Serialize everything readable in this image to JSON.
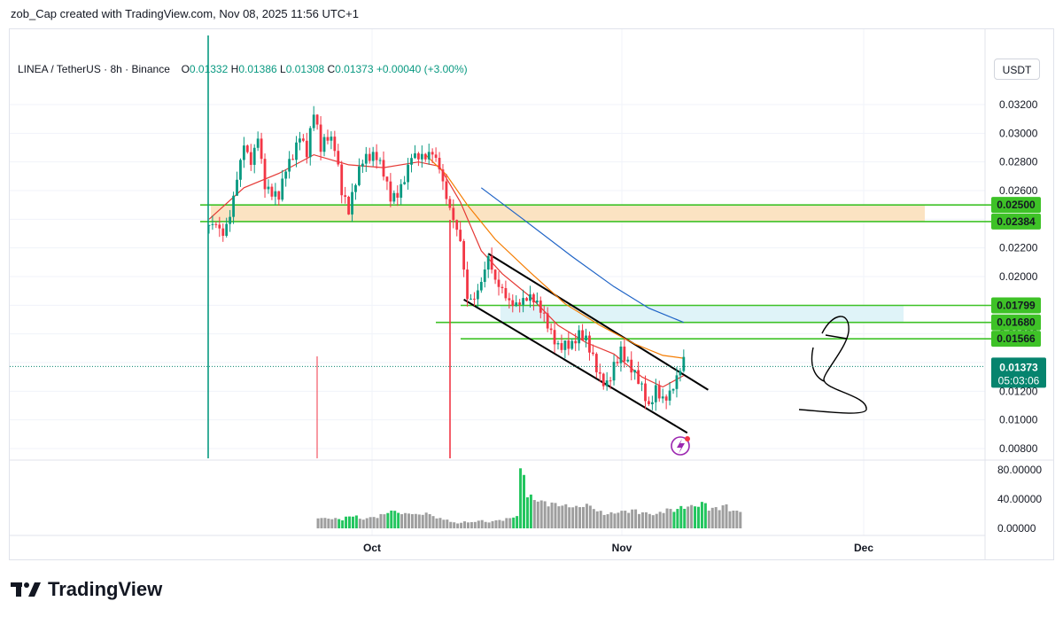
{
  "caption": "zob_Cap created with TradingView.com, Nov 08, 2025 11:56 UTC+1",
  "legend": {
    "symbol": "LINEA / TetherUS · 8h · Binance",
    "o_label": "O",
    "o_value": "0.01332",
    "h_label": "H",
    "h_value": "0.01386",
    "l_label": "L",
    "l_value": "0.01308",
    "c_label": "C",
    "c_value": "0.01373",
    "change": "+0.00040 (+3.00%)"
  },
  "currency_button": "USDT",
  "brand": "TradingView",
  "colors": {
    "up": "#089981",
    "down": "#f23645",
    "volume_up": "#22c55e",
    "volume_neutral": "#9e9e9e",
    "ema_red": "#e53935",
    "ema_orange": "#f57c00",
    "ema_blue": "#1e63c6",
    "level_line": "#3ec227",
    "supply_zone": "#fbe3c2",
    "demand_zone": "#dff3f8",
    "last_price_badge": "#06846e"
  },
  "chart_data": {
    "type": "candlestick",
    "price_axis": {
      "ticks": [
        "0.03200",
        "0.03000",
        "0.02800",
        "0.02600",
        "0.02400",
        "0.02200",
        "0.02000",
        "0.01800",
        "0.01600",
        "0.01400",
        "0.01200",
        "0.01000",
        "0.00800"
      ],
      "range": [
        0.0075,
        0.0345
      ]
    },
    "time_axis": {
      "labels": [
        "Oct",
        "Nov",
        "Dec"
      ]
    },
    "volume_axis": {
      "ticks": [
        "80.00000",
        "40.00000",
        "0.00000"
      ],
      "range": [
        0,
        82
      ]
    },
    "last_price": {
      "value": "0.01373",
      "countdown": "05:03:06"
    },
    "levels": [
      {
        "price": "0.02500",
        "value": 0.025
      },
      {
        "price": "0.02384",
        "value": 0.02384
      },
      {
        "price": "0.01799",
        "value": 0.01799
      },
      {
        "price": "0.01680",
        "value": 0.0168
      },
      {
        "price": "0.01566",
        "value": 0.01566
      }
    ],
    "zones": [
      {
        "name": "supply",
        "from": 0.02384,
        "to": 0.025
      },
      {
        "name": "demand",
        "from": 0.0168,
        "to": 0.01799
      }
    ],
    "price_path": [
      [
        0,
        0.0236
      ],
      [
        2,
        0.0232
      ],
      [
        4,
        0.0223
      ],
      [
        6,
        0.0239
      ],
      [
        8,
        0.027
      ],
      [
        10,
        0.0298
      ],
      [
        12,
        0.0285
      ],
      [
        14,
        0.03
      ],
      [
        16,
        0.026
      ],
      [
        18,
        0.0252
      ],
      [
        20,
        0.0251
      ],
      [
        22,
        0.0275
      ],
      [
        24,
        0.0288
      ],
      [
        26,
        0.0305
      ],
      [
        28,
        0.029
      ],
      [
        30,
        0.0315
      ],
      [
        32,
        0.0285
      ],
      [
        34,
        0.0292
      ],
      [
        36,
        0.0288
      ],
      [
        38,
        0.0262
      ],
      [
        40,
        0.0252
      ],
      [
        42,
        0.0272
      ],
      [
        44,
        0.0283
      ],
      [
        46,
        0.028
      ],
      [
        48,
        0.0278
      ],
      [
        50,
        0.0268
      ],
      [
        52,
        0.0255
      ],
      [
        54,
        0.0262
      ],
      [
        56,
        0.0274
      ],
      [
        58,
        0.0288
      ],
      [
        60,
        0.0282
      ],
      [
        62,
        0.0278
      ],
      [
        64,
        0.0281
      ],
      [
        66,
        0.0274
      ],
      [
        68,
        0.0258
      ],
      [
        70,
        0.0246
      ],
      [
        72,
        0.023
      ],
      [
        74,
        0.0185
      ],
      [
        76,
        0.018
      ],
      [
        78,
        0.019
      ],
      [
        80,
        0.021
      ],
      [
        82,
        0.0198
      ],
      [
        84,
        0.0196
      ],
      [
        86,
        0.0188
      ],
      [
        88,
        0.0183
      ],
      [
        90,
        0.0181
      ],
      [
        92,
        0.018
      ],
      [
        94,
        0.0176
      ],
      [
        96,
        0.0171
      ],
      [
        98,
        0.0164
      ],
      [
        100,
        0.0157
      ],
      [
        102,
        0.0157
      ],
      [
        104,
        0.0152
      ],
      [
        106,
        0.0155
      ],
      [
        108,
        0.015
      ],
      [
        110,
        0.014
      ],
      [
        112,
        0.0131
      ],
      [
        114,
        0.013
      ],
      [
        116,
        0.0143
      ],
      [
        118,
        0.015
      ],
      [
        120,
        0.0136
      ],
      [
        122,
        0.0126
      ],
      [
        124,
        0.0118
      ],
      [
        126,
        0.0108
      ],
      [
        128,
        0.0126
      ],
      [
        130,
        0.012
      ],
      [
        132,
        0.0122
      ],
      [
        134,
        0.0128
      ],
      [
        136,
        0.0137
      ]
    ],
    "ema_lines": [
      {
        "name": "ema-red",
        "points": [
          [
            0,
            0.024
          ],
          [
            10,
            0.0262
          ],
          [
            20,
            0.0272
          ],
          [
            30,
            0.0285
          ],
          [
            40,
            0.0278
          ],
          [
            50,
            0.0276
          ],
          [
            60,
            0.028
          ],
          [
            66,
            0.0277
          ],
          [
            72,
            0.0252
          ],
          [
            78,
            0.0218
          ],
          [
            84,
            0.0202
          ],
          [
            92,
            0.0186
          ],
          [
            100,
            0.0166
          ],
          [
            108,
            0.0154
          ],
          [
            116,
            0.0146
          ],
          [
            124,
            0.013
          ],
          [
            130,
            0.0123
          ],
          [
            136,
            0.0131
          ]
        ]
      },
      {
        "name": "ema-orange",
        "points": [
          [
            62,
            0.0285
          ],
          [
            68,
            0.0271
          ],
          [
            74,
            0.025
          ],
          [
            82,
            0.0226
          ],
          [
            92,
            0.0203
          ],
          [
            102,
            0.0181
          ],
          [
            112,
            0.0166
          ],
          [
            122,
            0.0153
          ],
          [
            130,
            0.0145
          ],
          [
            136,
            0.0143
          ]
        ]
      },
      {
        "name": "ema-blue",
        "points": [
          [
            78,
            0.0262
          ],
          [
            90,
            0.024
          ],
          [
            104,
            0.0214
          ],
          [
            116,
            0.0193
          ],
          [
            126,
            0.0178
          ],
          [
            136,
            0.0168
          ]
        ]
      }
    ],
    "channel": {
      "upper": [
        [
          80,
          0.0216
        ],
        [
          143,
          0.0121
        ]
      ],
      "lower": [
        [
          73,
          0.0184
        ],
        [
          137,
          0.0091
        ]
      ]
    },
    "volume": [
      [
        16,
        14
      ],
      [
        18,
        13
      ],
      [
        20,
        13
      ],
      [
        22,
        12
      ],
      [
        24,
        15
      ],
      [
        26,
        17
      ],
      [
        28,
        12
      ],
      [
        30,
        14
      ],
      [
        32,
        15
      ],
      [
        34,
        18
      ],
      [
        36,
        23
      ],
      [
        38,
        22
      ],
      [
        40,
        19
      ],
      [
        42,
        20
      ],
      [
        44,
        18
      ],
      [
        46,
        20
      ],
      [
        48,
        18
      ],
      [
        50,
        13
      ],
      [
        52,
        12
      ],
      [
        54,
        8
      ],
      [
        56,
        7
      ],
      [
        58,
        9
      ],
      [
        60,
        8
      ],
      [
        62,
        11
      ],
      [
        64,
        8
      ],
      [
        66,
        10
      ],
      [
        68,
        11
      ],
      [
        70,
        13
      ],
      [
        72,
        16
      ],
      [
        74,
        75
      ],
      [
        76,
        42
      ],
      [
        78,
        38
      ],
      [
        80,
        35
      ],
      [
        82,
        33
      ],
      [
        84,
        32
      ],
      [
        86,
        30
      ],
      [
        88,
        29
      ],
      [
        90,
        28
      ],
      [
        92,
        31
      ],
      [
        94,
        29
      ],
      [
        96,
        22
      ],
      [
        98,
        19
      ],
      [
        100,
        20
      ],
      [
        102,
        22
      ],
      [
        104,
        23
      ],
      [
        106,
        24
      ],
      [
        108,
        21
      ],
      [
        110,
        20
      ],
      [
        112,
        18
      ],
      [
        114,
        22
      ],
      [
        116,
        25
      ],
      [
        118,
        25
      ],
      [
        120,
        28
      ],
      [
        122,
        29
      ],
      [
        124,
        30
      ],
      [
        126,
        33
      ],
      [
        128,
        26
      ],
      [
        130,
        27
      ],
      [
        132,
        30
      ],
      [
        134,
        24
      ],
      [
        136,
        22
      ]
    ],
    "volume_green": [
      22,
      24,
      26,
      36,
      38,
      72,
      74,
      76,
      118,
      120,
      124,
      126
    ]
  }
}
